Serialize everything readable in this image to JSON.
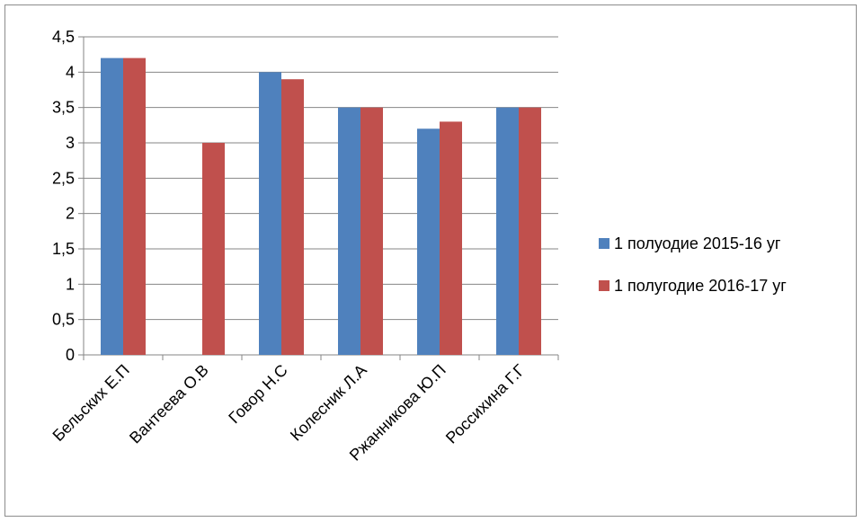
{
  "chart_data": {
    "type": "bar",
    "categories": [
      "Бельских Е.П",
      "Вантеева О.В",
      "Говор Н.С",
      "Колесник Л.А",
      "Ржанникова Ю.П",
      "Россихина Г.Г"
    ],
    "series": [
      {
        "name": "1 полуодие 2015-16 уг",
        "color": "#4f81bd",
        "values": [
          4.2,
          0,
          4.0,
          3.5,
          3.2,
          3.5
        ]
      },
      {
        "name": "1 полугодие 2016-17 уг",
        "color": "#c0504d",
        "values": [
          4.2,
          3.0,
          3.9,
          3.5,
          3.3,
          3.5
        ]
      }
    ],
    "ylim": [
      0,
      4.5
    ],
    "y_ticks": [
      0,
      0.5,
      1,
      1.5,
      2,
      2.5,
      3,
      3.5,
      4,
      4.5
    ],
    "y_tick_labels": [
      "0",
      "0,5",
      "1",
      "1,5",
      "2",
      "2,5",
      "3",
      "3,5",
      "4",
      "4,5"
    ],
    "grid": true,
    "legend_position": "right",
    "title": "",
    "xlabel": "",
    "ylabel": ""
  }
}
